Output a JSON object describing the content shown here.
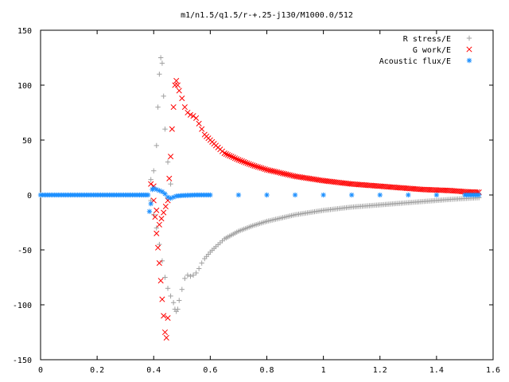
{
  "chart_data": {
    "type": "scatter",
    "title": "m1/n1.5/q1.5/r-+.25-j130/M1000.0/512",
    "xlabel": "",
    "ylabel": "",
    "xlim": [
      0,
      1.6
    ],
    "ylim": [
      -150,
      150
    ],
    "xticks": [
      0,
      0.2,
      0.4,
      0.6,
      0.8,
      1,
      1.2,
      1.4,
      1.6
    ],
    "xtick_labels": [
      "0",
      "0.2",
      "0.4",
      "0.6",
      "0.8",
      "1",
      "1.2",
      "1.4",
      "1.6"
    ],
    "yticks": [
      -150,
      -100,
      -50,
      0,
      50,
      100,
      150
    ],
    "ytick_labels": [
      "-150",
      "-100",
      "-50",
      "0",
      "50",
      "100",
      "150"
    ],
    "grid": false,
    "legend_position": "top-right",
    "series": [
      {
        "name": "R stress/E",
        "marker": "+",
        "color": "#a0a0a0",
        "points": [
          [
            0.39,
            14
          ],
          [
            0.4,
            22
          ],
          [
            0.41,
            45
          ],
          [
            0.415,
            80
          ],
          [
            0.42,
            110
          ],
          [
            0.425,
            125
          ],
          [
            0.43,
            120
          ],
          [
            0.435,
            90
          ],
          [
            0.44,
            60
          ],
          [
            0.45,
            30
          ],
          [
            0.46,
            10
          ],
          [
            0.39,
            -5
          ],
          [
            0.4,
            -18
          ],
          [
            0.41,
            -30
          ],
          [
            0.42,
            -45
          ],
          [
            0.43,
            -60
          ],
          [
            0.44,
            -75
          ],
          [
            0.45,
            -85
          ],
          [
            0.46,
            -92
          ],
          [
            0.47,
            -98
          ],
          [
            0.475,
            -104
          ],
          [
            0.48,
            -106
          ],
          [
            0.485,
            -104
          ],
          [
            0.49,
            -96
          ],
          [
            0.5,
            -86
          ],
          [
            0.51,
            -76
          ],
          [
            0.52,
            -73
          ],
          [
            0.53,
            -74
          ],
          [
            0.54,
            -73
          ],
          [
            0.55,
            -71
          ],
          [
            0.56,
            -67
          ],
          [
            0.57,
            -62
          ],
          [
            0.58,
            -58
          ],
          [
            0.6,
            -52
          ],
          [
            0.62,
            -47
          ],
          [
            0.65,
            -40
          ],
          [
            0.7,
            -33
          ],
          [
            0.75,
            -28
          ],
          [
            0.8,
            -24
          ],
          [
            0.85,
            -21
          ],
          [
            0.9,
            -18
          ],
          [
            0.95,
            -16
          ],
          [
            1.0,
            -14
          ],
          [
            1.05,
            -12.5
          ],
          [
            1.1,
            -11
          ],
          [
            1.15,
            -10
          ],
          [
            1.2,
            -9
          ],
          [
            1.25,
            -8
          ],
          [
            1.3,
            -7
          ],
          [
            1.35,
            -6
          ],
          [
            1.4,
            -5
          ],
          [
            1.45,
            -4
          ],
          [
            1.5,
            -3.2
          ],
          [
            1.55,
            -2.5
          ]
        ]
      },
      {
        "name": "G work/E",
        "marker": "x",
        "color": "#ff0000",
        "points": [
          [
            0.39,
            10
          ],
          [
            0.4,
            -5
          ],
          [
            0.405,
            -20
          ],
          [
            0.41,
            -35
          ],
          [
            0.415,
            -48
          ],
          [
            0.42,
            -62
          ],
          [
            0.425,
            -78
          ],
          [
            0.43,
            -95
          ],
          [
            0.435,
            -110
          ],
          [
            0.44,
            -125
          ],
          [
            0.445,
            -130
          ],
          [
            0.45,
            -112
          ],
          [
            0.4,
            8
          ],
          [
            0.41,
            -14
          ],
          [
            0.42,
            -27
          ],
          [
            0.45,
            -5
          ],
          [
            0.455,
            15
          ],
          [
            0.46,
            35
          ],
          [
            0.465,
            60
          ],
          [
            0.47,
            80
          ],
          [
            0.475,
            100
          ],
          [
            0.48,
            104
          ],
          [
            0.485,
            100
          ],
          [
            0.49,
            95
          ],
          [
            0.5,
            88
          ],
          [
            0.51,
            80
          ],
          [
            0.52,
            75
          ],
          [
            0.53,
            73
          ],
          [
            0.54,
            72
          ],
          [
            0.55,
            70
          ],
          [
            0.56,
            65
          ],
          [
            0.57,
            60
          ],
          [
            0.58,
            55
          ],
          [
            0.6,
            50
          ],
          [
            0.62,
            45
          ],
          [
            0.65,
            38
          ],
          [
            0.7,
            32
          ],
          [
            0.75,
            27
          ],
          [
            0.8,
            23
          ],
          [
            0.85,
            20
          ],
          [
            0.9,
            17
          ],
          [
            0.95,
            15
          ],
          [
            1.0,
            13
          ],
          [
            1.05,
            11.5
          ],
          [
            1.1,
            10
          ],
          [
            1.15,
            9
          ],
          [
            1.2,
            8
          ],
          [
            1.25,
            7
          ],
          [
            1.3,
            6
          ],
          [
            1.35,
            5
          ],
          [
            1.4,
            4.5
          ],
          [
            1.45,
            4
          ],
          [
            1.5,
            3
          ],
          [
            1.55,
            2.5
          ]
        ]
      },
      {
        "name": "Acoustic flux/E",
        "marker": "*",
        "color": "#1e90ff",
        "points": [
          [
            0.0,
            0
          ],
          [
            0.05,
            0
          ],
          [
            0.1,
            0
          ],
          [
            0.15,
            0
          ],
          [
            0.2,
            0
          ],
          [
            0.25,
            0
          ],
          [
            0.3,
            0
          ],
          [
            0.35,
            0
          ],
          [
            0.38,
            0
          ],
          [
            0.385,
            -15
          ],
          [
            0.39,
            -8
          ],
          [
            0.395,
            5
          ],
          [
            0.4,
            6
          ],
          [
            0.41,
            5
          ],
          [
            0.42,
            4
          ],
          [
            0.43,
            3
          ],
          [
            0.44,
            1
          ],
          [
            0.45,
            -2
          ],
          [
            0.46,
            -3
          ],
          [
            0.47,
            -2
          ],
          [
            0.48,
            -1
          ],
          [
            0.5,
            -0.5
          ],
          [
            0.55,
            0
          ],
          [
            0.6,
            0
          ],
          [
            0.7,
            0
          ],
          [
            0.8,
            0
          ],
          [
            0.9,
            0
          ],
          [
            1.0,
            0
          ],
          [
            1.1,
            0
          ],
          [
            1.2,
            0
          ],
          [
            1.3,
            0
          ],
          [
            1.4,
            0
          ],
          [
            1.5,
            0
          ],
          [
            1.55,
            0
          ]
        ]
      }
    ]
  }
}
